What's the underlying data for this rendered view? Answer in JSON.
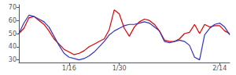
{
  "chart_data": {
    "type": "line",
    "categories": [
      null,
      null,
      null,
      null,
      null,
      null,
      null,
      null,
      null,
      null,
      "1/16",
      null,
      null,
      null,
      null,
      null,
      null,
      null,
      null,
      null,
      "1/30",
      null,
      null,
      null,
      null,
      null,
      null,
      null,
      null,
      null,
      null,
      null,
      null,
      null,
      null,
      null,
      null,
      null,
      null,
      null,
      "2/14",
      null,
      null
    ],
    "series": [
      {
        "color": "#dd0000",
        "values": [
          50,
          54,
          62,
          63,
          60,
          57,
          52,
          46,
          42,
          38,
          36,
          34,
          35,
          37,
          40,
          42,
          44,
          46,
          53,
          68,
          65,
          54,
          48,
          55,
          59,
          61,
          60,
          57,
          52,
          45,
          44,
          44,
          46,
          50,
          51,
          57,
          50,
          57,
          55,
          56,
          56,
          52,
          50
        ]
      },
      {
        "color": "#3333bb",
        "values": [
          50,
          58,
          64,
          63,
          61,
          59,
          55,
          48,
          41,
          35,
          32,
          31,
          30,
          31,
          33,
          36,
          40,
          44,
          49,
          52,
          54,
          56,
          57,
          57,
          58,
          59,
          58,
          55,
          52,
          44,
          43,
          44,
          45,
          44,
          41,
          32,
          30,
          49,
          54,
          57,
          58,
          55,
          49
        ]
      }
    ],
    "ylim": [
      28,
      72
    ],
    "yticks": [
      30,
      40,
      50,
      60,
      70
    ],
    "grid": false
  }
}
